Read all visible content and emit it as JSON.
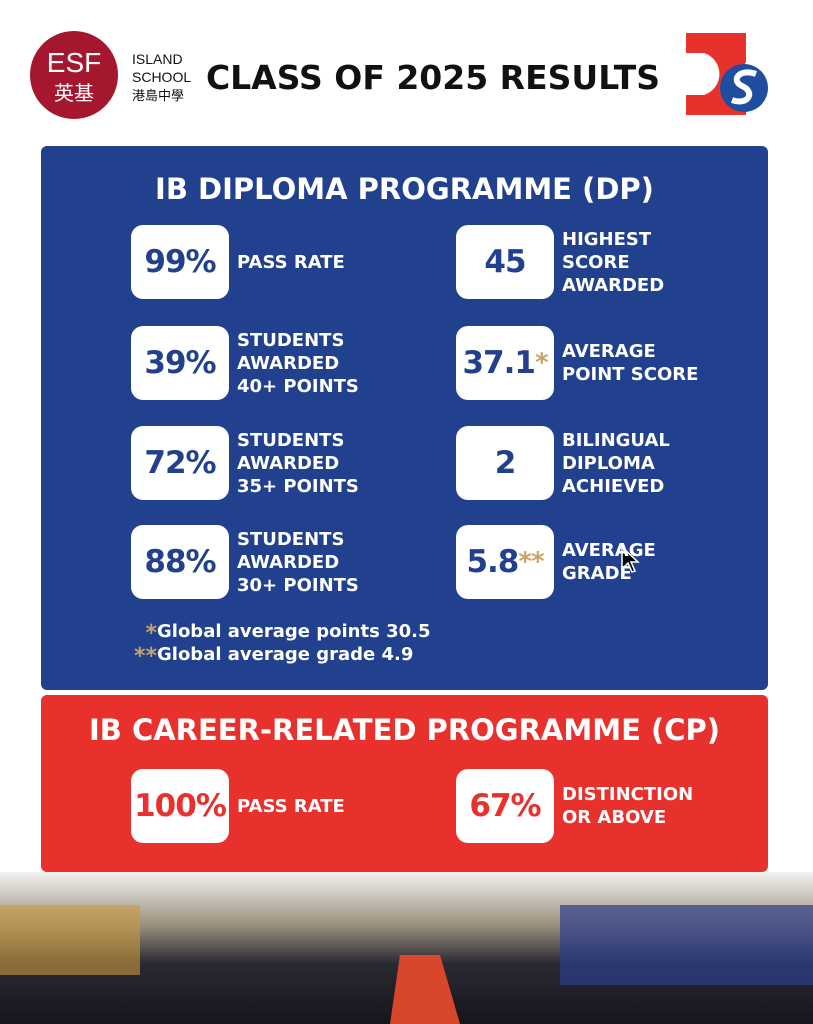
{
  "header": {
    "logo_text": "ESF",
    "logo_chinese": "英基",
    "school_lines": [
      "ISLAND",
      "SCHOOL",
      "港島中學"
    ],
    "title": "CLASS OF 2025 RESULTS"
  },
  "dp": {
    "title": "IB DIPLOMA PROGRAMME (DP)",
    "stats": [
      {
        "value": "99%",
        "label": [
          "PASS RATE"
        ]
      },
      {
        "value": "45",
        "label": [
          "HIGHEST",
          "SCORE",
          "AWARDED"
        ]
      },
      {
        "value": "39%",
        "label": [
          "STUDENTS",
          "AWARDED",
          "40+ POINTS"
        ]
      },
      {
        "value": "37.1",
        "mark": "*",
        "label": [
          "AVERAGE",
          "POINT SCORE"
        ]
      },
      {
        "value": "72%",
        "label": [
          "STUDENTS",
          "AWARDED",
          "35+ POINTS"
        ]
      },
      {
        "value": "2",
        "label": [
          "BILINGUAL",
          "DIPLOMA",
          "ACHIEVED"
        ]
      },
      {
        "value": "88%",
        "label": [
          "STUDENTS",
          "AWARDED",
          "30+ POINTS"
        ]
      },
      {
        "value": "5.8",
        "mark": "**",
        "label": [
          "AVERAGE",
          "GRADE"
        ]
      }
    ],
    "footnotes": [
      {
        "mark": "*",
        "text": "Global average points 30.5"
      },
      {
        "mark": "**",
        "text": "Global average grade 4.9"
      }
    ]
  },
  "cp": {
    "title": "IB CAREER-RELATED PROGRAMME (CP)",
    "stats": [
      {
        "value": "100%",
        "label": [
          "PASS RATE"
        ]
      },
      {
        "value": "67%",
        "label": [
          "DISTINCTION",
          "OR ABOVE"
        ]
      }
    ]
  }
}
